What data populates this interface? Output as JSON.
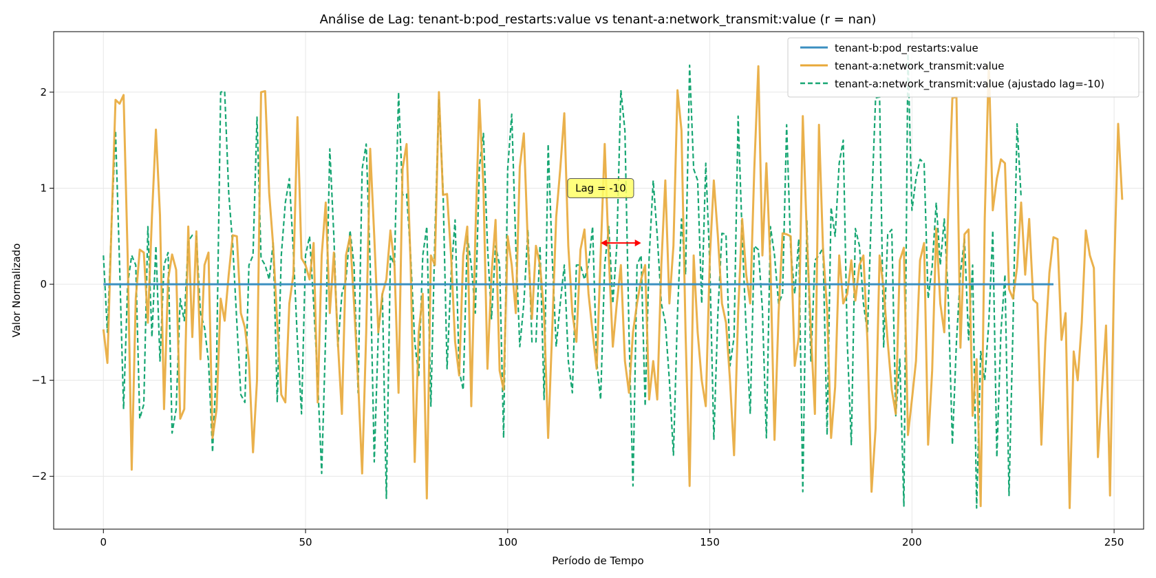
{
  "chart_data": {
    "type": "line",
    "title": "Análise de Lag: tenant-b:pod_restarts:value vs tenant-a:network_transmit:value (r = nan)",
    "xlabel": "Período de Tempo",
    "ylabel": "Valor Normalizado",
    "xlim": [
      -12.3,
      257.3
    ],
    "ylim": [
      -2.55,
      2.63
    ],
    "xticks": [
      0,
      50,
      100,
      150,
      200,
      250
    ],
    "yticks": [
      -2,
      -1,
      0,
      1,
      2
    ],
    "xtick_labels": [
      "0",
      "50",
      "100",
      "150",
      "200",
      "250"
    ],
    "ytick_labels": [
      "−2",
      "−1",
      "0",
      "1",
      "2"
    ],
    "grid": true,
    "legend_position": "top-right",
    "annotation": {
      "text": "Lag = -10",
      "x": 123,
      "y": 1.0,
      "arrow_x": [
        123,
        133
      ],
      "arrow_y": 0.43,
      "box_color": "#ffff66",
      "arrow_color": "#ff0000"
    },
    "series": [
      {
        "name": "tenant-b:pod_restarts:value",
        "color": "#3b8fc0",
        "style": "solid",
        "x_start": 0,
        "values": [
          0,
          0,
          0,
          0,
          0,
          0,
          0,
          0,
          0,
          0,
          0,
          0,
          0,
          0,
          0,
          0,
          0,
          0,
          0,
          0,
          0,
          0,
          0,
          0,
          0,
          0,
          0,
          0,
          0,
          0,
          0,
          0,
          0,
          0,
          0,
          0,
          0,
          0,
          0,
          0,
          0,
          0,
          0,
          0,
          0,
          0,
          0,
          0,
          0,
          0,
          0,
          0,
          0,
          0,
          0,
          0,
          0,
          0,
          0,
          0,
          0,
          0,
          0,
          0,
          0,
          0,
          0,
          0,
          0,
          0,
          0,
          0,
          0,
          0,
          0,
          0,
          0,
          0,
          0,
          0,
          0,
          0,
          0,
          0,
          0,
          0,
          0,
          0,
          0,
          0,
          0,
          0,
          0,
          0,
          0,
          0,
          0,
          0,
          0,
          0,
          0,
          0,
          0,
          0,
          0,
          0,
          0,
          0,
          0,
          0,
          0,
          0,
          0,
          0,
          0,
          0,
          0,
          0,
          0,
          0,
          0,
          0,
          0,
          0,
          0,
          0,
          0,
          0,
          0,
          0,
          0,
          0,
          0,
          0,
          0,
          0,
          0,
          0,
          0,
          0,
          0,
          0,
          0,
          0,
          0,
          0,
          0,
          0,
          0,
          0,
          0,
          0,
          0,
          0,
          0,
          0,
          0,
          0,
          0,
          0,
          0,
          0,
          0,
          0,
          0,
          0,
          0,
          0,
          0,
          0,
          0,
          0,
          0,
          0,
          0,
          0,
          0,
          0,
          0,
          0,
          0,
          0,
          0,
          0,
          0,
          0,
          0,
          0,
          0,
          0,
          0,
          0,
          0,
          0,
          0,
          0,
          0,
          0,
          0,
          0,
          0,
          0,
          0,
          0,
          0,
          0,
          0,
          0,
          0,
          0,
          0,
          0,
          0,
          0,
          0,
          0,
          0,
          0,
          0,
          0,
          0,
          0,
          0,
          0,
          0,
          0,
          0,
          0,
          0,
          0,
          0,
          0,
          0,
          0,
          0,
          0
        ]
      },
      {
        "name": "tenant-a:network_transmit:value",
        "color": "#e8a838",
        "style": "solid",
        "x_start": 0,
        "values": [
          -0.47,
          -0.82,
          0.6,
          1.92,
          1.88,
          1.97,
          0.3,
          -1.93,
          -0.15,
          0.36,
          0.33,
          -0.4,
          0.7,
          1.61,
          0.72,
          -1.3,
          0.05,
          0.31,
          0.15,
          -1.4,
          -1.3,
          0.6,
          -0.55,
          0.55,
          -0.78,
          0.2,
          0.33,
          -1.6,
          -1.3,
          -0.15,
          -0.38,
          0.1,
          0.51,
          0.5,
          -0.3,
          -0.45,
          -0.8,
          -1.75,
          -1.0,
          2.0,
          2.01,
          0.95,
          0.4,
          -0.4,
          -1.15,
          -1.23,
          -0.2,
          0.1,
          1.74,
          0.27,
          0.2,
          0.05,
          0.43,
          -1.23,
          0.3,
          0.85,
          -0.3,
          0.33,
          -0.6,
          -1.35,
          0.3,
          0.5,
          -0.2,
          -1.0,
          -1.97,
          -0.5,
          1.41,
          0.5,
          -0.5,
          -0.1,
          0.05,
          0.56,
          0.2,
          -1.13,
          1.2,
          1.46,
          0.2,
          -1.85,
          -0.5,
          -0.1,
          -2.23,
          0.3,
          0.2,
          2.0,
          0.93,
          0.94,
          0.3,
          -0.6,
          -0.95,
          0.3,
          0.6,
          -1.27,
          0.5,
          1.92,
          1.0,
          -0.88,
          0.1,
          0.67,
          -0.9,
          -1.1,
          0.5,
          0.2,
          -0.3,
          1.22,
          1.57,
          0.4,
          -0.36,
          0.4,
          0.2,
          -0.3,
          -1.6,
          -0.5,
          0.7,
          1.2,
          1.78,
          0.4,
          -0.3,
          -0.6,
          0.36,
          0.57,
          -0.1,
          -0.5,
          -0.88,
          0.3,
          1.46,
          0.3,
          -0.65,
          -0.2,
          0.2,
          -0.8,
          -1.13,
          -0.5,
          -0.2,
          0.05,
          0.2,
          -1.2,
          -0.8,
          -1.2,
          0.2,
          1.08,
          -0.2,
          0.4,
          2.02,
          1.6,
          -0.5,
          -2.1,
          0.3,
          -0.5,
          -1.0,
          -1.27,
          0.28,
          1.08,
          0.5,
          -0.2,
          -0.4,
          -1.0,
          -1.78,
          -0.3,
          0.68,
          0.1,
          -0.2,
          1.2,
          2.27,
          0.3,
          1.26,
          0.2,
          -1.62,
          -0.3,
          0.53,
          0.52,
          0.5,
          -0.85,
          -0.55,
          1.75,
          0.5,
          -0.5,
          -1.35,
          1.66,
          0.36,
          -0.26,
          -1.6,
          -1.07,
          0.3,
          -0.2,
          -0.1,
          0.25,
          -0.17,
          0.2,
          0.3,
          -0.6,
          -2.16,
          -1.5,
          0.3,
          -0.05,
          -0.6,
          -1.1,
          -1.35,
          0.25,
          0.38,
          -1.57,
          -1.2,
          -0.8,
          0.25,
          0.43,
          -1.67,
          -0.9,
          0.58,
          -0.2,
          -0.5,
          0.8,
          1.94,
          1.95,
          -0.66,
          0.52,
          0.57,
          -1.37,
          -0.78,
          -2.31,
          0.68,
          2.3,
          0.77,
          1.1,
          1.3,
          1.26,
          -0.05,
          -0.15,
          0.18,
          0.85,
          0.1,
          0.68,
          -0.16,
          -0.2,
          -1.67,
          -0.6,
          0.12,
          0.49,
          0.47,
          -0.58,
          -0.3,
          -2.33,
          -0.7,
          -1.0,
          -0.4,
          0.56,
          0.3,
          0.17,
          -1.8,
          -1.1,
          -0.43,
          -2.2,
          0.1,
          1.67,
          0.88
        ]
      },
      {
        "name": "tenant-a:network_transmit:value (ajustado lag=-10)",
        "color": "#17a673",
        "style": "dashed",
        "x_start": 0,
        "values": [
          0.3,
          -0.5,
          0.6,
          1.6,
          0.2,
          -1.3,
          0.0,
          0.3,
          0.2,
          -1.4,
          -1.25,
          0.6,
          -0.55,
          0.4,
          -0.8,
          0.2,
          0.33,
          -1.55,
          -1.3,
          -0.15,
          -0.38,
          0.45,
          0.51,
          0.5,
          -0.3,
          -0.45,
          -0.8,
          -1.75,
          -0.8,
          2.0,
          2.01,
          0.95,
          0.4,
          -0.4,
          -1.15,
          -1.23,
          0.2,
          0.3,
          1.74,
          0.27,
          0.2,
          0.05,
          0.43,
          -1.23,
          0.3,
          0.85,
          1.1,
          0.33,
          -0.6,
          -1.35,
          0.3,
          0.5,
          -0.2,
          -1.0,
          -1.97,
          -0.5,
          1.41,
          0.5,
          -0.65,
          -0.1,
          0.05,
          0.56,
          0.2,
          -1.13,
          1.2,
          1.46,
          0.2,
          -1.85,
          -0.5,
          -0.1,
          -2.23,
          0.3,
          0.2,
          2.0,
          0.93,
          0.94,
          0.3,
          -0.6,
          -0.95,
          0.3,
          0.6,
          -1.27,
          0.5,
          1.92,
          1.0,
          -0.88,
          0.1,
          0.67,
          -0.9,
          -1.1,
          0.5,
          0.2,
          -0.3,
          1.22,
          1.57,
          0.4,
          -0.36,
          0.4,
          0.2,
          -1.6,
          1.2,
          1.77,
          0.4,
          -0.65,
          -0.2,
          0.57,
          -0.6,
          -0.6,
          0.4,
          -1.2,
          1.46,
          0.3,
          -0.65,
          -0.2,
          0.2,
          -0.8,
          -1.13,
          0.2,
          0.2,
          0.05,
          0.2,
          0.6,
          -0.8,
          -1.2,
          0.2,
          0.6,
          -0.2,
          0.4,
          2.02,
          1.6,
          -0.5,
          -2.1,
          0.2,
          0.3,
          -1.27,
          0.28,
          1.08,
          0.5,
          -0.2,
          -0.4,
          -1.0,
          -1.78,
          -0.3,
          0.68,
          0.1,
          2.28,
          1.2,
          1.08,
          -0.2,
          1.26,
          0.2,
          -1.62,
          -0.3,
          0.53,
          0.52,
          -0.85,
          -0.55,
          1.75,
          0.5,
          -0.5,
          -1.35,
          0.4,
          0.36,
          -0.26,
          -1.6,
          0.6,
          0.3,
          -0.2,
          -0.1,
          1.66,
          0.36,
          -0.1,
          0.47,
          -2.16,
          0.66,
          -0.8,
          0.25,
          0.3,
          0.38,
          -1.57,
          0.8,
          0.5,
          1.26,
          1.5,
          -0.6,
          -1.67,
          0.58,
          0.4,
          -0.2,
          -0.5,
          0.8,
          1.94,
          1.95,
          -0.66,
          0.52,
          0.57,
          -1.37,
          -0.78,
          -2.31,
          2.4,
          0.77,
          1.1,
          1.3,
          1.26,
          -0.15,
          0.18,
          0.85,
          0.2,
          0.68,
          -0.16,
          -1.67,
          -0.6,
          0.12,
          0.47,
          -0.58,
          0.2,
          -2.33,
          -0.7,
          -1.0,
          -0.4,
          0.56,
          -1.8,
          -0.5,
          0.1,
          -2.2,
          -0.43,
          1.67,
          0.9
        ]
      }
    ]
  }
}
